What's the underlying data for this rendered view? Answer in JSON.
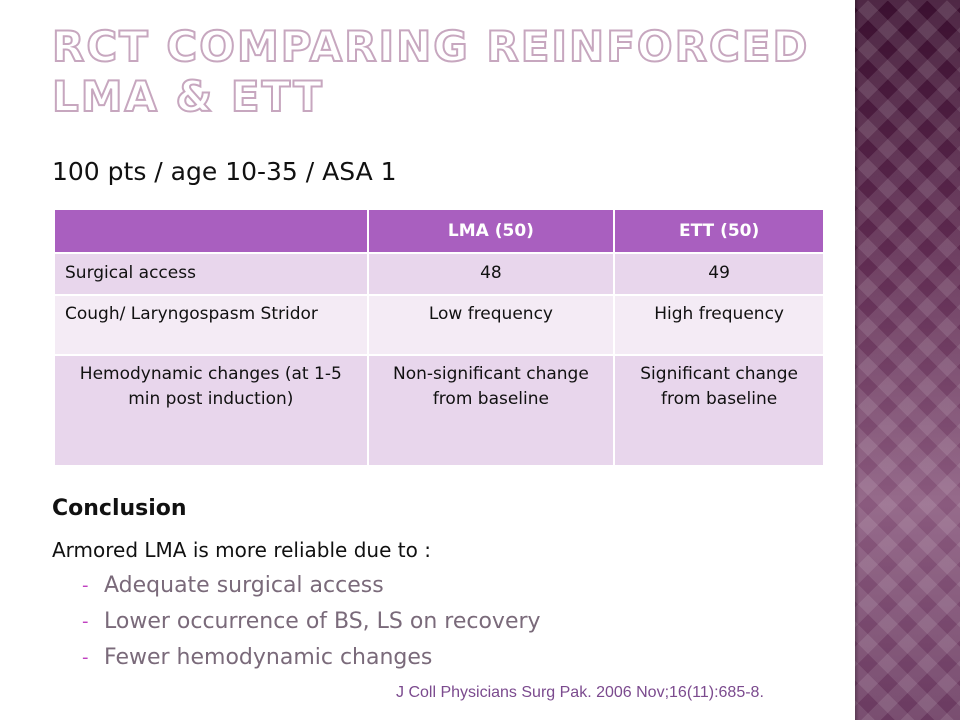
{
  "slide": {
    "title": "RCT COMPARING REINFORCED LMA & ETT",
    "subtitle": "100 pts / age 10-35 / ASA 1"
  },
  "table": {
    "headers": [
      "",
      "LMA (50)",
      "ETT (50)"
    ],
    "rows": [
      {
        "label": "Surgical access",
        "lma": "48",
        "ett": "49"
      },
      {
        "label": "Cough/ Laryngospasm Stridor",
        "lma": "Low frequency",
        "ett": "High frequency"
      },
      {
        "label": "Hemodynamic changes (at 1-5 min post induction)",
        "lma": "Non-significant change from baseline",
        "ett": "Significant change from baseline"
      }
    ]
  },
  "conclusion": {
    "heading": "Conclusion",
    "text": "Armored LMA is more reliable due to :",
    "points": [
      "Adequate surgical access",
      "Lower occurrence of BS, LS on recovery",
      "Fewer hemodynamic changes"
    ]
  },
  "citation": "J Coll Physicians Surg Pak. 2006 Nov;16(11):685-8.",
  "colors": {
    "header_purple": "#a95fbf",
    "row_light": "#e8d6ec",
    "row_lighter": "#f4ebf5",
    "band": "#4a1a36",
    "citation": "#7b4a8e"
  }
}
